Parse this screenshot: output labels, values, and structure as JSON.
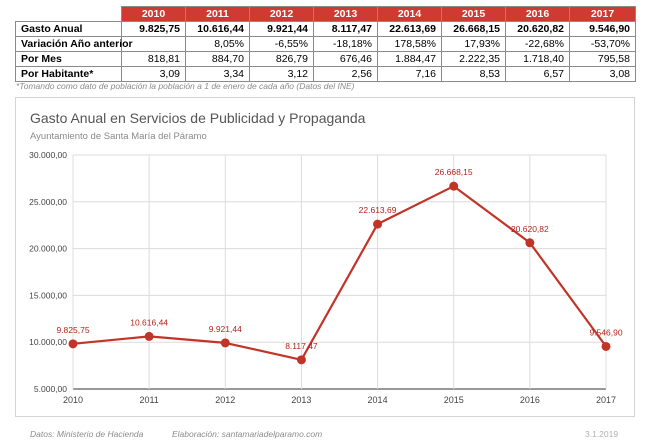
{
  "table": {
    "years": [
      "2010",
      "2011",
      "2012",
      "2013",
      "2014",
      "2015",
      "2016",
      "2017"
    ],
    "rows": [
      {
        "label": "Gasto Anual",
        "bold": true,
        "values": [
          "9.825,75",
          "10.616,44",
          "9.921,44",
          "8.117,47",
          "22.613,69",
          "26.668,15",
          "20.620,82",
          "9.546,90"
        ]
      },
      {
        "label": "Variación Año anterior",
        "bold": false,
        "values": [
          "",
          "8,05%",
          "-6,55%",
          "-18,18%",
          "178,58%",
          "17,93%",
          "-22,68%",
          "-53,70%"
        ]
      },
      {
        "label": "Por Mes",
        "bold": false,
        "values": [
          "818,81",
          "884,70",
          "826,79",
          "676,46",
          "1.884,47",
          "2.222,35",
          "1.718,40",
          "795,58"
        ]
      },
      {
        "label": "Por Habitante*",
        "bold": false,
        "values": [
          "3,09",
          "3,34",
          "3,12",
          "2,56",
          "7,16",
          "8,53",
          "6,57",
          "3,08"
        ]
      }
    ]
  },
  "footnote": "*Tomando como dato de población la población a 1 de enero de cada año (Datos del INE)",
  "chart_data": {
    "type": "line",
    "title": "Gasto Anual en Servicios de Publicidad y Propaganda",
    "subtitle": "Ayuntamiento de Santa María del Páramo",
    "x": [
      "2010",
      "2011",
      "2012",
      "2013",
      "2014",
      "2015",
      "2016",
      "2017"
    ],
    "values": [
      9825.75,
      10616.44,
      9921.44,
      8117.47,
      22613.69,
      26668.15,
      20620.82,
      9546.9
    ],
    "data_labels": [
      "9.825,75",
      "10.616,44",
      "9.921,44",
      "8.117,47",
      "22.613,69",
      "26.668,15",
      "20.620,82",
      "9.546,90"
    ],
    "ylim": [
      5000,
      30000
    ],
    "yticks": [
      5000,
      10000,
      15000,
      20000,
      25000,
      30000
    ],
    "ytick_labels": [
      "5.000,00",
      "10.000,00",
      "15.000,00",
      "20.000,00",
      "25.000,00",
      "30.000,00"
    ],
    "grid": true,
    "legend": "none",
    "color": "#c33428"
  },
  "footer": {
    "source": "Datos: Ministerio de Hacienda",
    "elaboration": "Elaboración: santamariadelparamo.com",
    "date": "3.1.2019"
  }
}
